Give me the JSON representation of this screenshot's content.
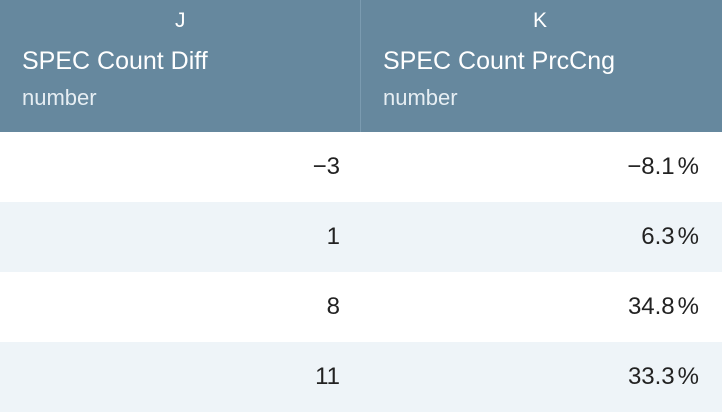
{
  "columns": [
    {
      "letter": "J",
      "name": "SPEC Count Diff",
      "type": "number"
    },
    {
      "letter": "K",
      "name": "SPEC Count PrcCng",
      "type": "number"
    }
  ],
  "rows": [
    {
      "diff": "−3",
      "pct": "−8.1",
      "unit": "%"
    },
    {
      "diff": "1",
      "pct": "6.3",
      "unit": "%"
    },
    {
      "diff": "8",
      "pct": "34.8",
      "unit": "%"
    },
    {
      "diff": "11",
      "pct": "33.3",
      "unit": "%"
    }
  ],
  "colors": {
    "header_bg": "#66889e",
    "header_text": "#ffffff",
    "stripe": "#eef4f8"
  }
}
